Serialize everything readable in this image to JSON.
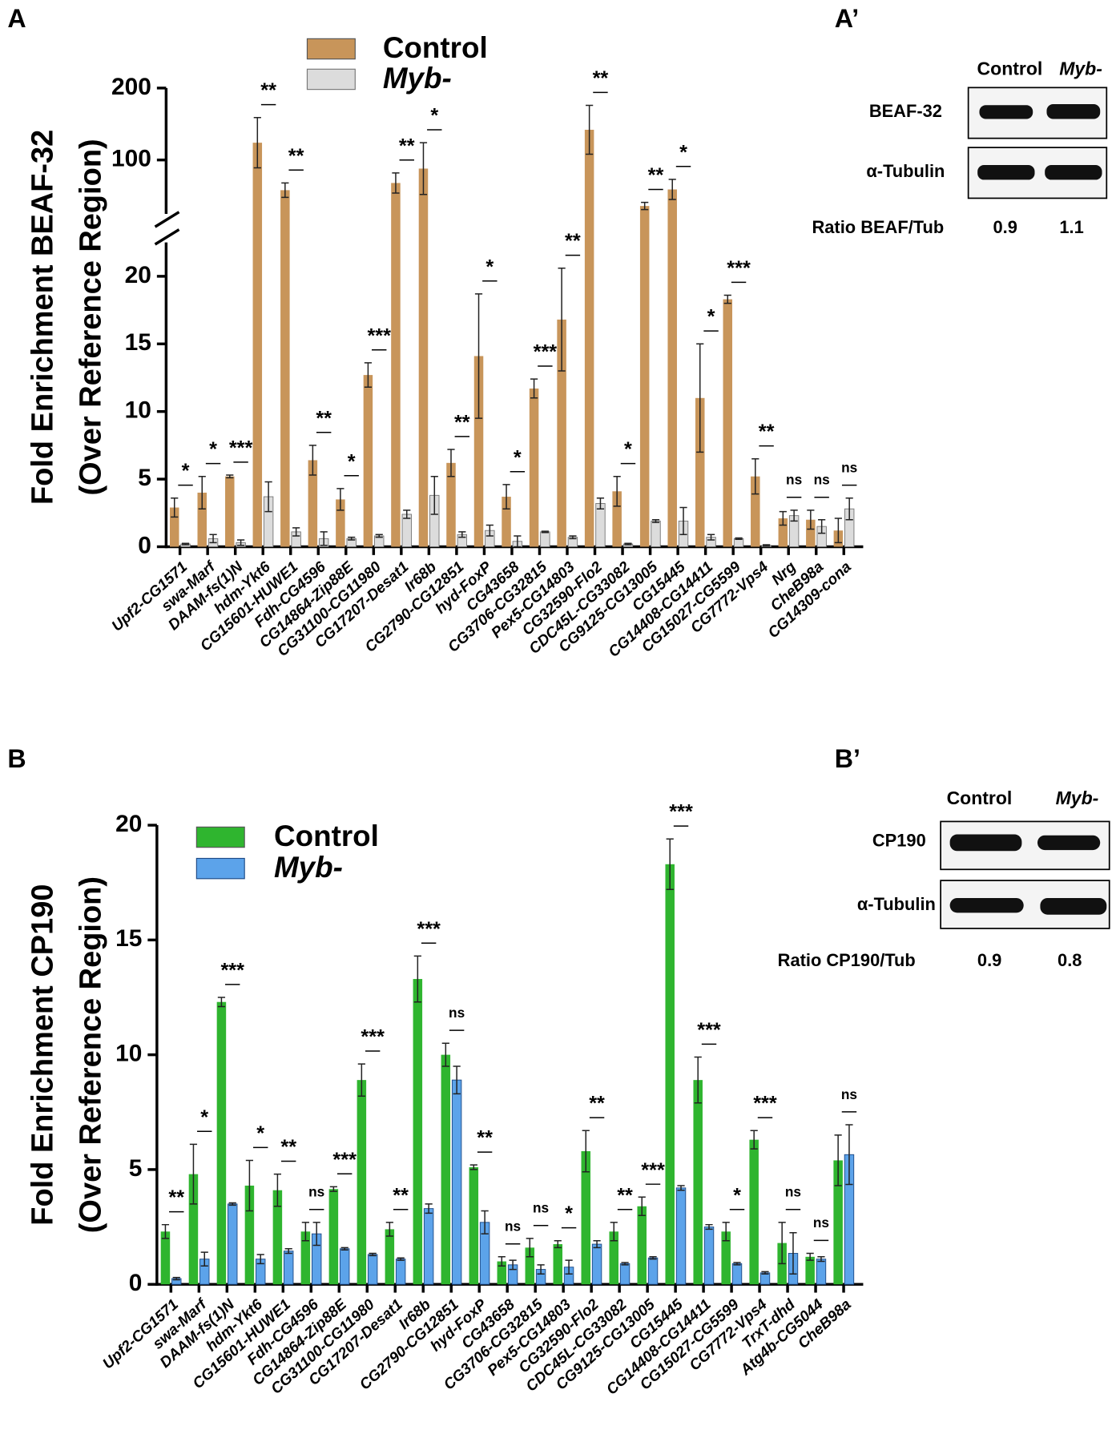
{
  "panel_labels": [
    "A",
    "A’",
    "B",
    "B’"
  ],
  "chart_data": [
    {
      "type": "bar",
      "ylabel": [
        "Fold Enrichment BEAF-32",
        "(Over Reference Region)"
      ],
      "categories": [
        "Upf2-CG1571",
        "swa-Marf",
        "DAAM-fs(1)N",
        "hdm-Ykt6",
        "CG15601-HUWE1",
        "Fdh-CG4596",
        "CG14864-Zip88E",
        "CG31100-CG11980",
        "CG17207-Desat1",
        "Ir68b",
        "CG2790-CG12851",
        "hyd-FoxP",
        "CG43658",
        "CG3706-CG32815",
        "Pex5-CG14803",
        "CG32590-Flo2",
        "CDC45L-CG33082",
        "CG9125-CG13005",
        "CG15445",
        "CG14408-CG14411",
        "CG15027-CG5599",
        "CG7772-Vps4",
        "Nrg",
        "CheB98a",
        "CG14309-cona"
      ],
      "series": [
        {
          "name": "Control",
          "color": "#c8955a",
          "values": [
            2.9,
            4.0,
            5.2,
            124,
            58,
            6.4,
            3.5,
            12.7,
            68,
            88,
            6.2,
            14.1,
            3.7,
            11.7,
            16.8,
            142,
            4.1,
            36,
            59,
            11.0,
            18.3,
            5.2,
            2.1,
            2.0,
            1.2
          ],
          "errors": [
            0.7,
            1.2,
            0.1,
            35,
            10,
            1.1,
            0.8,
            0.9,
            14,
            36,
            1.0,
            4.6,
            0.9,
            0.7,
            3.8,
            34,
            1.1,
            5,
            14,
            4.0,
            0.3,
            1.3,
            0.5,
            0.7,
            0.9
          ]
        },
        {
          "name": "Myb-",
          "color": "#dcdcdc",
          "values": [
            0.2,
            0.6,
            0.3,
            3.7,
            1.1,
            0.6,
            0.6,
            0.8,
            2.4,
            3.8,
            0.9,
            1.2,
            0.4,
            1.1,
            0.7,
            3.2,
            0.2,
            1.9,
            1.9,
            0.7,
            0.6,
            0.1,
            2.3,
            1.5,
            2.8
          ],
          "errors": [
            0.05,
            0.3,
            0.2,
            1.1,
            0.3,
            0.5,
            0.1,
            0.1,
            0.3,
            1.4,
            0.2,
            0.4,
            0.4,
            0.05,
            0.1,
            0.4,
            0.05,
            0.1,
            1.0,
            0.2,
            0.05,
            0.05,
            0.4,
            0.5,
            0.8
          ]
        }
      ],
      "significance": [
        "*",
        "*",
        "***",
        "**",
        "**",
        "**",
        "*",
        "***",
        "**",
        "*",
        "**",
        "*",
        "*",
        "***",
        "**",
        "**",
        "*",
        "**",
        "*",
        "*",
        "***",
        "**",
        "ns",
        "ns",
        "ns"
      ],
      "ylim": [
        0,
        200
      ],
      "ybreak": [
        22.5,
        25
      ],
      "yticks": [
        0,
        5,
        10,
        15,
        20,
        100,
        200
      ]
    },
    {
      "type": "bar",
      "ylabel": [
        "Fold Enrichment CP190",
        "(Over Reference Region)"
      ],
      "categories": [
        "Upf2-CG1571",
        "swa-Marf",
        "DAAM-fs(1)N",
        "hdm-Ykt6",
        "CG15601-HUWE1",
        "Fdh-CG4596",
        "CG14864-Zip88E",
        "CG31100-CG11980",
        "CG17207-Desat1",
        "Ir68b",
        "CG2790-CG12851",
        "hyd-FoxP",
        "CG43658",
        "CG3706-CG32815",
        "Pex5-CG14803",
        "CG32590-Flo2",
        "CDC45L-CG33082",
        "CG9125-CG13005",
        "CG15445",
        "CG14408-CG14411",
        "CG15027-CG5599",
        "CG7772-Vps4",
        "TrxT-dhd",
        "Atg4b-CG5044",
        "CheB98a"
      ],
      "series": [
        {
          "name": "Control",
          "color": "#2fb52f",
          "values": [
            2.3,
            4.8,
            12.3,
            4.3,
            4.1,
            2.3,
            4.15,
            8.9,
            2.4,
            13.3,
            10.0,
            5.1,
            1.0,
            1.6,
            1.75,
            5.8,
            2.3,
            3.4,
            18.3,
            8.9,
            2.3,
            6.3,
            1.8,
            1.2,
            5.4
          ],
          "errors": [
            0.3,
            1.3,
            0.2,
            1.1,
            0.7,
            0.4,
            0.1,
            0.7,
            0.3,
            1.0,
            0.5,
            0.1,
            0.2,
            0.4,
            0.15,
            0.9,
            0.4,
            0.4,
            1.1,
            1.0,
            0.4,
            0.4,
            0.9,
            0.15,
            1.1
          ]
        },
        {
          "name": "Myb-",
          "color": "#5ca3ea",
          "values": [
            0.25,
            1.1,
            3.5,
            1.1,
            1.45,
            2.2,
            1.55,
            1.3,
            1.1,
            3.3,
            8.9,
            2.7,
            0.85,
            0.65,
            0.75,
            1.75,
            0.9,
            1.15,
            4.2,
            2.5,
            0.9,
            0.5,
            1.35,
            1.1,
            5.65
          ],
          "errors": [
            0.05,
            0.3,
            0.05,
            0.2,
            0.1,
            0.5,
            0.05,
            0.05,
            0.05,
            0.2,
            0.6,
            0.5,
            0.2,
            0.2,
            0.3,
            0.15,
            0.05,
            0.05,
            0.1,
            0.1,
            0.05,
            0.05,
            0.9,
            0.1,
            1.3
          ]
        }
      ],
      "significance": [
        "**",
        "*",
        "***",
        "*",
        "**",
        "ns",
        "***",
        "***",
        "**",
        "***",
        "ns",
        "**",
        "ns",
        "ns",
        "*",
        "**",
        "**",
        "***",
        "***",
        "***",
        "*",
        "***",
        "ns",
        "ns",
        "ns"
      ],
      "ylim": [
        0,
        20
      ],
      "yticks": [
        0,
        5,
        10,
        15,
        20
      ]
    }
  ],
  "blots": [
    {
      "columns": [
        "Control",
        "Myb-"
      ],
      "rows": [
        "BEAF-32",
        "α-Tubulin"
      ],
      "ratio_label": "Ratio BEAF/Tub",
      "ratios": [
        "0.9",
        "1.1"
      ]
    },
    {
      "columns": [
        "Control",
        "Myb-"
      ],
      "rows": [
        "CP190",
        "α-Tubulin"
      ],
      "ratio_label": "Ratio CP190/Tub",
      "ratios": [
        "0.9",
        "0.8"
      ]
    }
  ]
}
